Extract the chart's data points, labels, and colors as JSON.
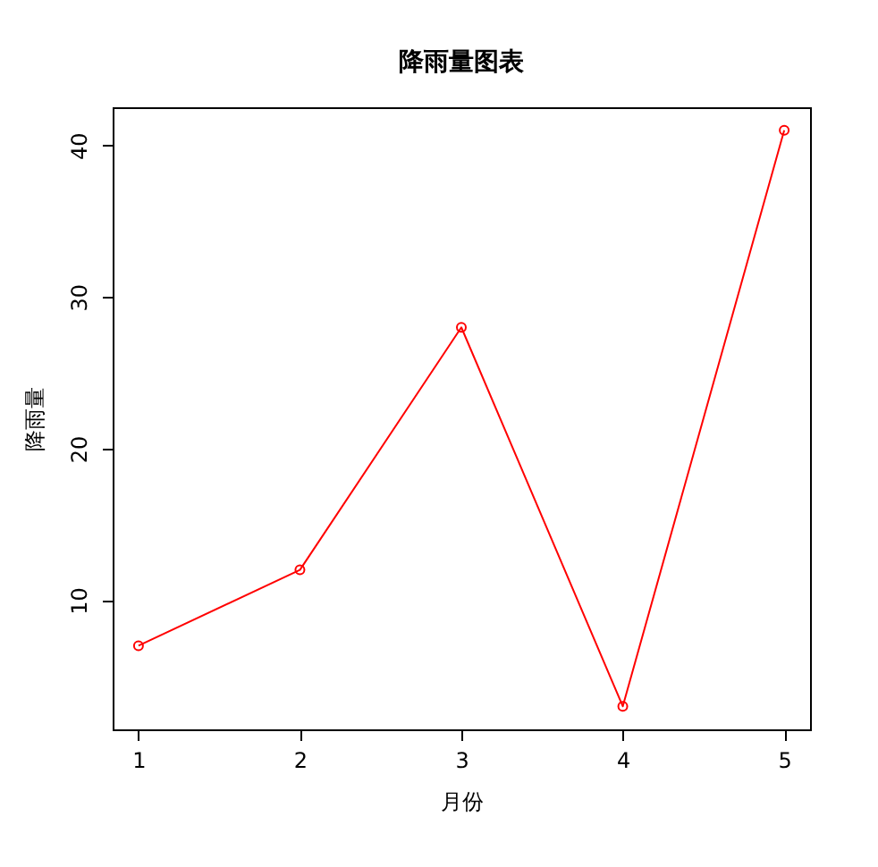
{
  "chart_data": {
    "type": "line",
    "title": "降雨量图表",
    "xlabel": "月份",
    "ylabel": "降雨量",
    "x": [
      1,
      2,
      3,
      4,
      5
    ],
    "series": [
      {
        "color": "#ff0000",
        "values": [
          7,
          12,
          28,
          3,
          41
        ]
      }
    ],
    "xlim": [
      0.84,
      5.16
    ],
    "ylim": [
      1.48,
      42.52
    ],
    "xticks": [
      1,
      2,
      3,
      4,
      5
    ],
    "yticks": [
      10,
      20,
      30,
      40
    ],
    "grid": false,
    "marker": "circle",
    "line_style": "solid"
  }
}
